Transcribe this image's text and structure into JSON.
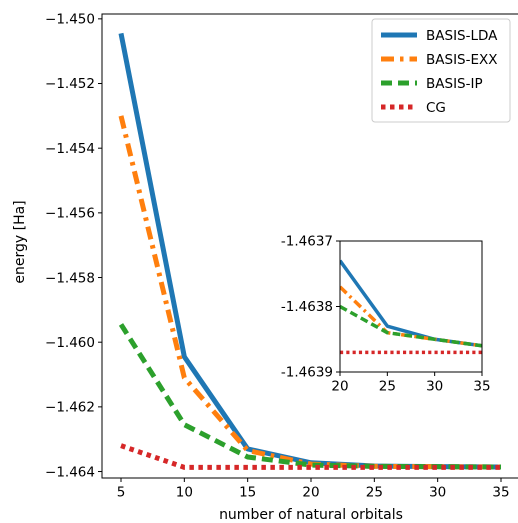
{
  "chart_data": [
    {
      "type": "line",
      "xlabel": "number of natural orbitals",
      "ylabel": "energy [Ha]",
      "xlim": [
        3.5,
        36.5
      ],
      "ylim": [
        -1.4642,
        -1.44985
      ],
      "xticks": [
        5,
        10,
        15,
        20,
        25,
        30,
        35
      ],
      "xtick_labels": [
        "5",
        "10",
        "15",
        "20",
        "25",
        "30",
        "35"
      ],
      "yticks": [
        -1.45,
        -1.452,
        -1.454,
        -1.456,
        -1.458,
        -1.46,
        -1.462,
        -1.464
      ],
      "ytick_labels": [
        "−1.450",
        "−1.452",
        "−1.454",
        "−1.456",
        "−1.458",
        "−1.460",
        "−1.462",
        "−1.464"
      ],
      "grid": false,
      "legend_position": "top-right",
      "x": [
        5,
        10,
        15,
        20,
        25,
        30,
        35
      ],
      "series": [
        {
          "name": "BASIS-LDA",
          "color": "#1f77b4",
          "style": "solid",
          "values": [
            -1.45045,
            -1.46045,
            -1.4633,
            -1.46373,
            -1.46383,
            -1.46385,
            -1.46386
          ]
        },
        {
          "name": "BASIS-EXX",
          "color": "#ff7f0e",
          "style": "dashdot",
          "values": [
            -1.453,
            -1.4611,
            -1.46335,
            -1.46377,
            -1.46384,
            -1.46385,
            -1.46386
          ]
        },
        {
          "name": "BASIS-IP",
          "color": "#2ca02c",
          "style": "dashed",
          "values": [
            -1.45945,
            -1.46255,
            -1.46355,
            -1.4638,
            -1.46384,
            -1.46385,
            -1.46386
          ]
        },
        {
          "name": "CG",
          "color": "#d62728",
          "style": "dotted",
          "values": [
            -1.4632,
            -1.46387,
            -1.46387,
            -1.46387,
            -1.46387,
            -1.46387,
            -1.46387
          ]
        }
      ]
    },
    {
      "type": "line",
      "xlim": [
        20,
        35
      ],
      "ylim": [
        -1.4639,
        -1.4637
      ],
      "xticks": [
        20,
        25,
        30,
        35
      ],
      "xtick_labels": [
        "20",
        "25",
        "30",
        "35"
      ],
      "yticks": [
        -1.4637,
        -1.4638,
        -1.4639
      ],
      "ytick_labels": [
        "-1.4637",
        "-1.4638",
        "-1.4639"
      ],
      "grid": false,
      "x": [
        20,
        25,
        30,
        35
      ],
      "series": [
        {
          "name": "BASIS-LDA",
          "color": "#1f77b4",
          "style": "solid",
          "values": [
            -1.46373,
            -1.46383,
            -1.46385,
            -1.46386
          ]
        },
        {
          "name": "BASIS-EXX",
          "color": "#ff7f0e",
          "style": "dashdot",
          "values": [
            -1.46377,
            -1.46384,
            -1.46385,
            -1.46386
          ]
        },
        {
          "name": "BASIS-IP",
          "color": "#2ca02c",
          "style": "dashed",
          "values": [
            -1.4638,
            -1.46384,
            -1.46385,
            -1.46386
          ]
        },
        {
          "name": "CG",
          "color": "#d62728",
          "style": "dotted",
          "values": [
            -1.46387,
            -1.46387,
            -1.46387,
            -1.46387
          ]
        }
      ]
    }
  ]
}
